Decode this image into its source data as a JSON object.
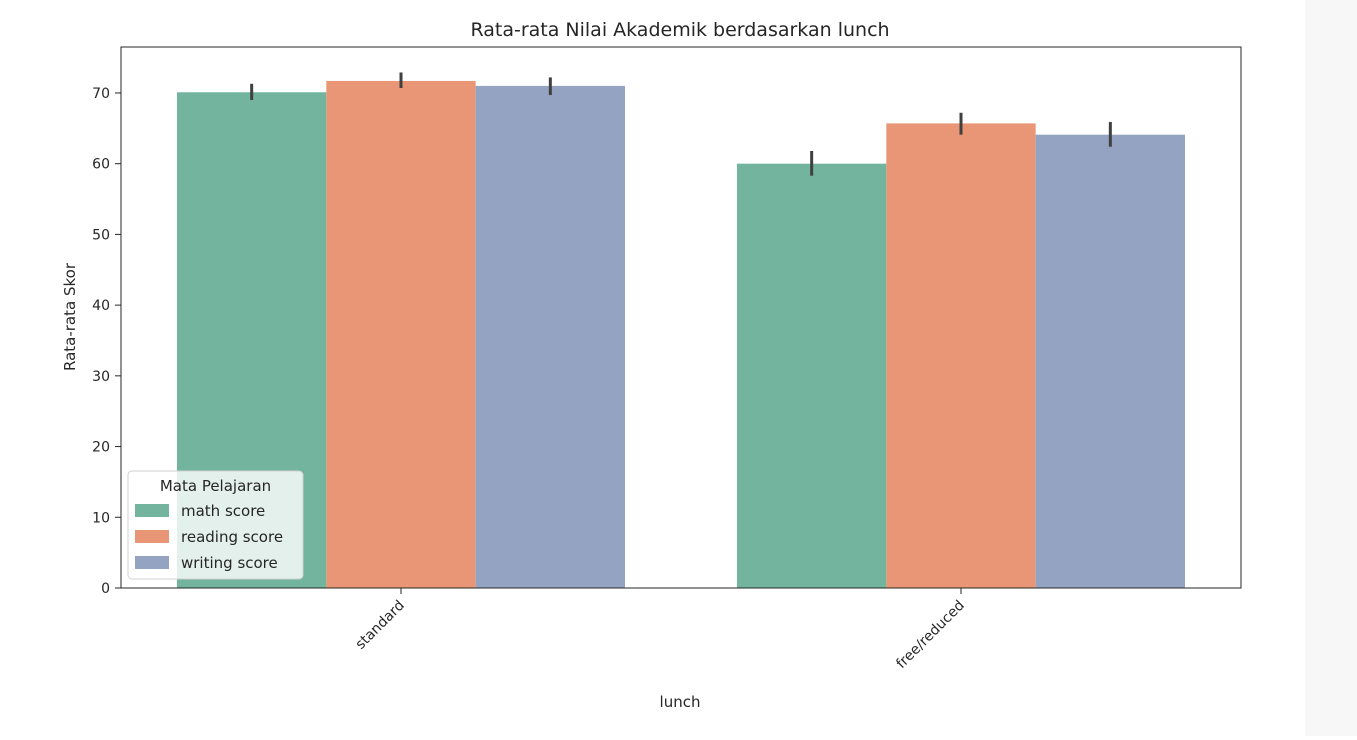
{
  "chart_data": {
    "type": "bar",
    "title": "Rata-rata Nilai Akademik berdasarkan lunch",
    "xlabel": "lunch",
    "ylabel": "Rata-rata Skor",
    "categories": [
      "standard",
      "free/reduced"
    ],
    "ylim": [
      0,
      76.5
    ],
    "yticks": [
      0,
      10,
      20,
      30,
      40,
      50,
      60,
      70
    ],
    "grid": false,
    "legend": {
      "title": "Mata Pelajaran",
      "placement": "lower-left"
    },
    "series": [
      {
        "name": "math score",
        "color": "#72b49e",
        "values": [
          70.1,
          60.0
        ],
        "error": [
          [
            69.0,
            71.3
          ],
          [
            58.3,
            61.8
          ]
        ]
      },
      {
        "name": "reading score",
        "color": "#e89675",
        "values": [
          71.7,
          65.7
        ],
        "error": [
          [
            70.7,
            72.9
          ],
          [
            64.1,
            67.2
          ]
        ]
      },
      {
        "name": "writing score",
        "color": "#94a3c2",
        "values": [
          71.0,
          64.1
        ],
        "error": [
          [
            69.7,
            72.2
          ],
          [
            62.4,
            65.9
          ]
        ]
      }
    ],
    "errorbar_color": "#404040"
  }
}
